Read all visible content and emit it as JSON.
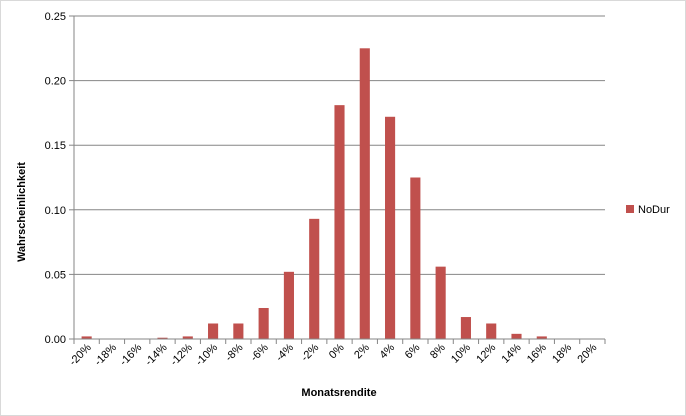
{
  "chart_data": {
    "type": "bar",
    "xlabel": "Monatsrendite",
    "ylabel": "Wahrscheinlichkeit",
    "categories": [
      "-20%",
      "-18%",
      "-16%",
      "-14%",
      "-12%",
      "-10%",
      "-8%",
      "-6%",
      "-4%",
      "-2%",
      "0%",
      "2%",
      "4%",
      "6%",
      "8%",
      "10%",
      "12%",
      "14%",
      "16%",
      "18%",
      "20%"
    ],
    "series": [
      {
        "name": "NoDur",
        "color": "#c0504d",
        "values": [
          0.002,
          0.0,
          0.0,
          0.001,
          0.002,
          0.012,
          0.012,
          0.024,
          0.052,
          0.093,
          0.181,
          0.225,
          0.172,
          0.125,
          0.056,
          0.017,
          0.012,
          0.004,
          0.002,
          0.0,
          0.0
        ]
      }
    ],
    "ylim": [
      0,
      0.25
    ],
    "yticks": [
      "0.00",
      "0.05",
      "0.10",
      "0.15",
      "0.20",
      "0.25"
    ],
    "grid": "horizontal",
    "legend_position": "right"
  }
}
